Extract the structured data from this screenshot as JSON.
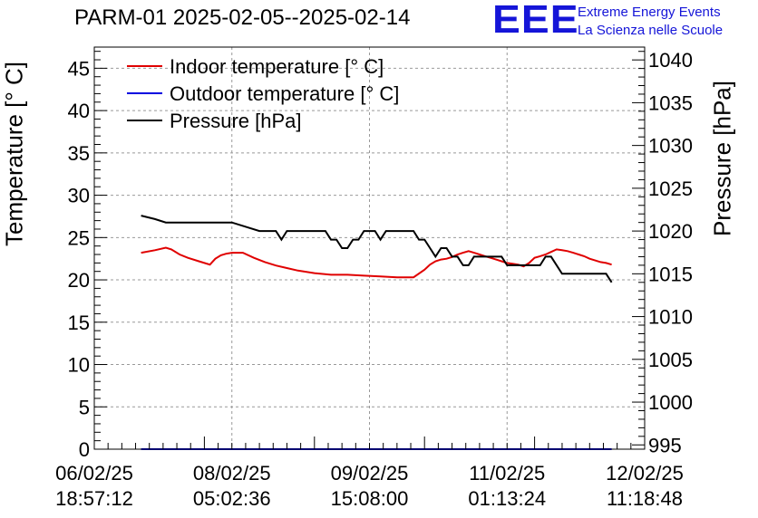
{
  "header": {
    "title": "PARM-01 2025-02-05--2025-02-14",
    "logo": "EEE",
    "logo_line1": "Extreme Energy Events",
    "logo_line2": "La Scienza nelle Scuole"
  },
  "colors": {
    "indoor": "#e00000",
    "outdoor": "#0000e0",
    "pressure": "#000000",
    "logo": "#1515d8",
    "grid": "#999999"
  },
  "chart_data": {
    "type": "line",
    "title": "PARM-01 2025-02-05--2025-02-14",
    "ylabel_left": "Temperature [° C]",
    "ylabel_right": "Pressure [hPa]",
    "ylim_left": [
      0,
      47.5
    ],
    "ylim_right": [
      994.5,
      1041.5
    ],
    "yticks_left": [
      0,
      5,
      10,
      15,
      20,
      25,
      30,
      35,
      40,
      45
    ],
    "yticks_right": [
      995,
      1000,
      1005,
      1010,
      1015,
      1020,
      1025,
      1030,
      1035,
      1040
    ],
    "xlim": [
      0,
      100
    ],
    "xticks": [
      {
        "x": 0,
        "line1": "06/02/25",
        "line2": "18:57:12"
      },
      {
        "x": 25,
        "line1": "08/02/25",
        "line2": "05:02:36"
      },
      {
        "x": 50,
        "line1": "09/02/25",
        "line2": "15:08:00"
      },
      {
        "x": 75,
        "line1": "11/02/25",
        "line2": "01:13:24"
      },
      {
        "x": 100,
        "line1": "12/02/25",
        "line2": "11:18:48"
      }
    ],
    "grid": true,
    "legend_position": "top-left",
    "series": [
      {
        "name": "Indoor temperature [° C]",
        "axis": "left",
        "color": "#e00000",
        "x": [
          8.5,
          11,
          13,
          14,
          15.5,
          17,
          19,
          21,
          22,
          23,
          24,
          25,
          27,
          29,
          31,
          33,
          35,
          37,
          40,
          43,
          46,
          49,
          52,
          55,
          58,
          60,
          61,
          62,
          63,
          64,
          65,
          66,
          67,
          68,
          69,
          70,
          71,
          72,
          73,
          74,
          75,
          76,
          77,
          78,
          79,
          80,
          81,
          82,
          83,
          84,
          85,
          86,
          87,
          88,
          89,
          90,
          91,
          92,
          93,
          94
        ],
        "y": [
          23.2,
          23.5,
          23.8,
          23.6,
          23.0,
          22.6,
          22.2,
          21.8,
          22.5,
          22.9,
          23.1,
          23.2,
          23.2,
          22.6,
          22.1,
          21.7,
          21.4,
          21.1,
          20.8,
          20.6,
          20.6,
          20.5,
          20.4,
          20.3,
          20.3,
          21.2,
          21.8,
          22.2,
          22.4,
          22.5,
          22.7,
          23.0,
          23.2,
          23.4,
          23.2,
          23.0,
          22.8,
          22.6,
          22.4,
          22.2,
          22.0,
          21.9,
          21.8,
          21.6,
          22.0,
          22.6,
          22.8,
          23.0,
          23.3,
          23.6,
          23.5,
          23.4,
          23.2,
          23.0,
          22.8,
          22.5,
          22.3,
          22.1,
          22.0,
          21.8
        ]
      },
      {
        "name": "Outdoor temperature [° C]",
        "axis": "left",
        "color": "#0000e0",
        "x": [
          8.5,
          20,
          40,
          60,
          80,
          94
        ],
        "y": [
          0,
          0,
          0,
          0,
          0,
          0
        ]
      },
      {
        "name": "Pressure [hPa]",
        "axis": "right",
        "color": "#000000",
        "x": [
          8.5,
          11,
          13,
          14.5,
          25,
          30,
          32,
          33,
          34,
          35,
          36,
          37,
          38,
          39,
          40,
          41,
          42,
          43,
          44,
          45,
          46,
          47,
          48,
          49,
          50,
          51,
          52,
          53,
          54,
          55,
          56,
          57,
          58,
          59,
          60,
          61,
          62,
          63,
          64,
          65,
          66,
          67,
          68,
          69,
          70,
          71,
          72,
          73,
          74,
          75,
          76,
          77,
          78,
          79,
          80,
          81,
          82,
          83,
          84,
          85,
          86,
          87,
          88,
          89,
          90,
          91,
          92,
          93,
          94
        ],
        "y": [
          1021.8,
          1021.4,
          1021.0,
          1021.0,
          1021.0,
          1020.0,
          1020.0,
          1020.0,
          1019.0,
          1020.0,
          1020.0,
          1020.0,
          1020.0,
          1020.0,
          1020.0,
          1020.0,
          1020.0,
          1019.0,
          1019.0,
          1018.0,
          1018.0,
          1019.0,
          1019.0,
          1020.0,
          1020.0,
          1020.0,
          1019.0,
          1020.0,
          1020.0,
          1020.0,
          1020.0,
          1020.0,
          1020.0,
          1019.0,
          1019.0,
          1018.0,
          1017.0,
          1018.0,
          1018.0,
          1017.0,
          1017.0,
          1016.0,
          1016.0,
          1017.0,
          1017.0,
          1017.0,
          1017.0,
          1017.0,
          1017.0,
          1016.0,
          1016.0,
          1016.0,
          1016.0,
          1016.0,
          1016.0,
          1016.0,
          1017.0,
          1017.0,
          1016.0,
          1015.0,
          1015.0,
          1015.0,
          1015.0,
          1015.0,
          1015.0,
          1015.0,
          1015.0,
          1015.0,
          1014.0
        ]
      }
    ]
  }
}
